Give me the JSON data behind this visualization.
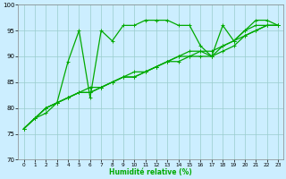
{
  "xlabel": "Humidité relative (%)",
  "xlim": [
    -0.5,
    23.5
  ],
  "ylim": [
    70,
    100
  ],
  "yticks": [
    70,
    75,
    80,
    85,
    90,
    95,
    100
  ],
  "xticks": [
    0,
    1,
    2,
    3,
    4,
    5,
    6,
    7,
    8,
    9,
    10,
    11,
    12,
    13,
    14,
    15,
    16,
    17,
    18,
    19,
    20,
    21,
    22,
    23
  ],
  "bg_color": "#cceeff",
  "grid_color": "#99cccc",
  "line_color": "#00aa00",
  "series": [
    {
      "y": [
        76,
        78,
        79,
        81,
        89,
        95,
        82,
        95,
        93,
        96,
        96,
        97,
        97,
        97,
        96,
        96,
        92,
        90,
        96,
        93,
        95,
        97,
        97,
        96
      ],
      "marker": true,
      "lw": 0.9
    },
    {
      "y": [
        76,
        78,
        80,
        81,
        82,
        83,
        84,
        84,
        85,
        86,
        87,
        87,
        88,
        89,
        90,
        91,
        91,
        91,
        92,
        93,
        94,
        95,
        96,
        96
      ],
      "marker": true,
      "lw": 0.9
    },
    {
      "y": [
        76,
        78,
        80,
        81,
        82,
        83,
        83,
        84,
        85,
        86,
        86,
        87,
        88,
        89,
        89,
        90,
        90,
        90,
        91,
        92,
        94,
        95,
        96,
        96
      ],
      "marker": true,
      "lw": 0.9
    },
    {
      "y": [
        76,
        78,
        80,
        81,
        82,
        83,
        83,
        84,
        85,
        86,
        86,
        87,
        88,
        89,
        90,
        90,
        91,
        90,
        92,
        93,
        95,
        96,
        96,
        96
      ],
      "marker": true,
      "lw": 0.9
    }
  ]
}
